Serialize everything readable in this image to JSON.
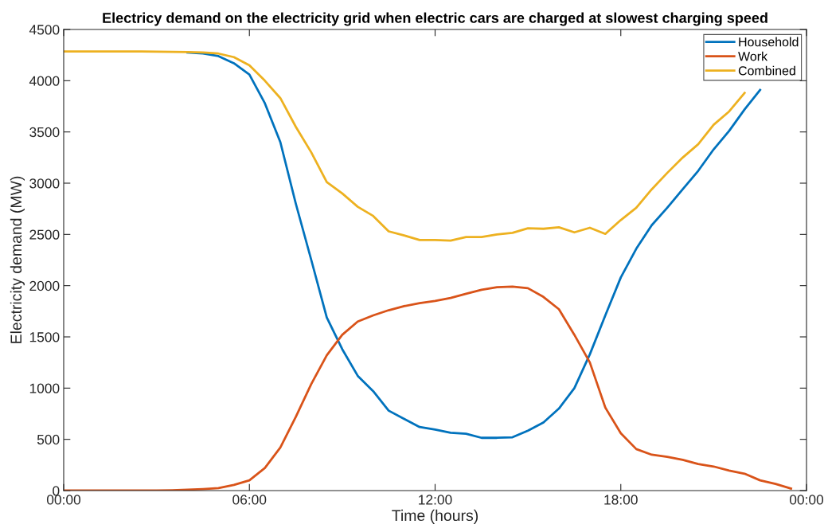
{
  "chart_data": {
    "type": "line",
    "title": "Electricy demand on the electricity grid when electric cars are charged at slowest charging speed",
    "xlabel": "Time (hours)",
    "ylabel": "Electricity demand (MW)",
    "x": [
      0,
      0.5,
      1,
      1.5,
      2,
      2.5,
      3,
      3.5,
      4,
      4.5,
      5,
      5.5,
      6,
      6.5,
      7,
      7.5,
      8,
      8.5,
      9,
      9.5,
      10,
      10.5,
      11,
      11.5,
      12,
      12.5,
      13,
      13.5,
      14,
      14.5,
      15,
      15.5,
      16,
      16.5,
      17,
      17.5,
      18,
      18.5,
      19,
      19.5,
      20,
      20.5,
      21,
      21.5,
      22,
      22.5,
      23,
      23.5
    ],
    "series": [
      {
        "name": "Household",
        "color": "#0072bd",
        "values": [
          null,
          null,
          null,
          null,
          null,
          null,
          null,
          null,
          4275,
          4265,
          4240,
          4170,
          4060,
          3780,
          3400,
          2800,
          2250,
          1690,
          1380,
          1120,
          970,
          780,
          700,
          620,
          595,
          565,
          555,
          515,
          515,
          520,
          585,
          665,
          800,
          1000,
          1330,
          1710,
          2080,
          2360,
          2590,
          2760,
          2940,
          3120,
          3330,
          3510,
          3720,
          3910,
          null,
          null
        ]
      },
      {
        "name": "Work",
        "color": "#d95319",
        "values": [
          0,
          0,
          0,
          0,
          0,
          0,
          0,
          3,
          8,
          15,
          25,
          55,
          100,
          220,
          420,
          720,
          1040,
          1320,
          1520,
          1650,
          1710,
          1760,
          1800,
          1830,
          1850,
          1880,
          1920,
          1960,
          1985,
          1990,
          1975,
          1890,
          1770,
          1520,
          1250,
          810,
          560,
          405,
          350,
          330,
          300,
          260,
          235,
          195,
          165,
          100,
          65,
          20
        ]
      },
      {
        "name": "Combined",
        "color": "#edb120",
        "values": [
          4285,
          4285,
          4285,
          4285,
          4285,
          4285,
          4284,
          4282,
          4280,
          4275,
          4265,
          4230,
          4150,
          4000,
          3830,
          3550,
          3300,
          3010,
          2900,
          2770,
          2680,
          2530,
          2490,
          2445,
          2445,
          2440,
          2475,
          2475,
          2500,
          2515,
          2560,
          2555,
          2570,
          2520,
          2565,
          2505,
          2640,
          2760,
          2940,
          3100,
          3250,
          3380,
          3570,
          3700,
          3880,
          null,
          null,
          null
        ]
      }
    ],
    "xlim": [
      0,
      24
    ],
    "xticks": [
      {
        "value": 0,
        "label": "00:00"
      },
      {
        "value": 6,
        "label": "06:00"
      },
      {
        "value": 12,
        "label": "12:00"
      },
      {
        "value": 18,
        "label": "18:00"
      },
      {
        "value": 24,
        "label": "00:00"
      }
    ],
    "ylim": [
      0,
      4500
    ],
    "yticks": [
      0,
      500,
      1000,
      1500,
      2000,
      2500,
      3000,
      3500,
      4000,
      4500
    ],
    "legend": "top right",
    "grid": false,
    "marker": "none",
    "line_style": "solid"
  }
}
